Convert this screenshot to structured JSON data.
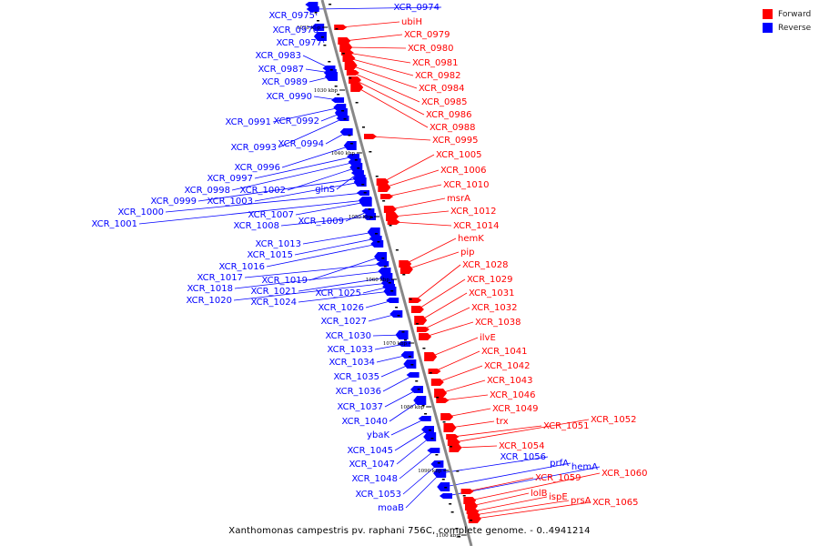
{
  "legend": {
    "items": [
      {
        "label": "Forward",
        "color": "#ff0000"
      },
      {
        "label": "Reverse",
        "color": "#0000ff"
      }
    ]
  },
  "caption": "Xanthomonas campestris pv. raphani 756C, complete genome. - 0..4941214",
  "ticks": [
    "1020 kbp",
    "1030 kbp",
    "1040 kbp",
    "1050 kbp",
    "1060 kbp",
    "1070 kbp",
    "1080 kbp",
    "1090 kbp",
    "1100 kbp"
  ],
  "reverse_genes": [
    "XCR_0975",
    "XCR_0976",
    "XCR_0977",
    "XCR_0983",
    "XCR_0987",
    "XCR_0989",
    "XCR_0990",
    "XCR_0991",
    "XCR_0992",
    "XCR_0993",
    "XCR_0994",
    "XCR_0996",
    "XCR_0997",
    "XCR_0998",
    "XCR_1002",
    "glnS",
    "XCR_0999",
    "XCR_1003",
    "XCR_1000",
    "XCR_1001",
    "XCR_1007",
    "XCR_1009",
    "XCR_1008",
    "XCR_1013",
    "XCR_1015",
    "XCR_1016",
    "XCR_1019",
    "XCR_1017",
    "XCR_1018",
    "XCR_1021",
    "XCR_1025",
    "XCR_1020",
    "XCR_1024",
    "XCR_1026",
    "XCR_1027",
    "XCR_1030",
    "XCR_1033",
    "XCR_1034",
    "XCR_1035",
    "XCR_1036",
    "XCR_1037",
    "XCR_1040",
    "ybaK",
    "XCR_1045",
    "XCR_1047",
    "XCR_1048",
    "XCR_1053",
    "moaB",
    "XCR_0974",
    "XCR_1056",
    "prfA",
    "hemA"
  ],
  "forward_genes": [
    "ubiH",
    "XCR_0979",
    "XCR_0980",
    "XCR_0981",
    "XCR_0982",
    "XCR_0984",
    "XCR_0985",
    "XCR_0986",
    "XCR_0988",
    "XCR_0995",
    "XCR_1005",
    "XCR_1006",
    "XCR_1010",
    "msrA",
    "XCR_1012",
    "XCR_1014",
    "hemK",
    "pip",
    "XCR_1028",
    "XCR_1029",
    "XCR_1031",
    "XCR_1032",
    "XCR_1038",
    "ilvE",
    "XCR_1041",
    "XCR_1042",
    "XCR_1043",
    "XCR_1046",
    "XCR_1049",
    "trx",
    "XCR_1051",
    "XCR_1052",
    "XCR_1054",
    "XCR_1059",
    "XCR_1060",
    "lolB",
    "ispE",
    "prsA",
    "XCR_1065"
  ]
}
